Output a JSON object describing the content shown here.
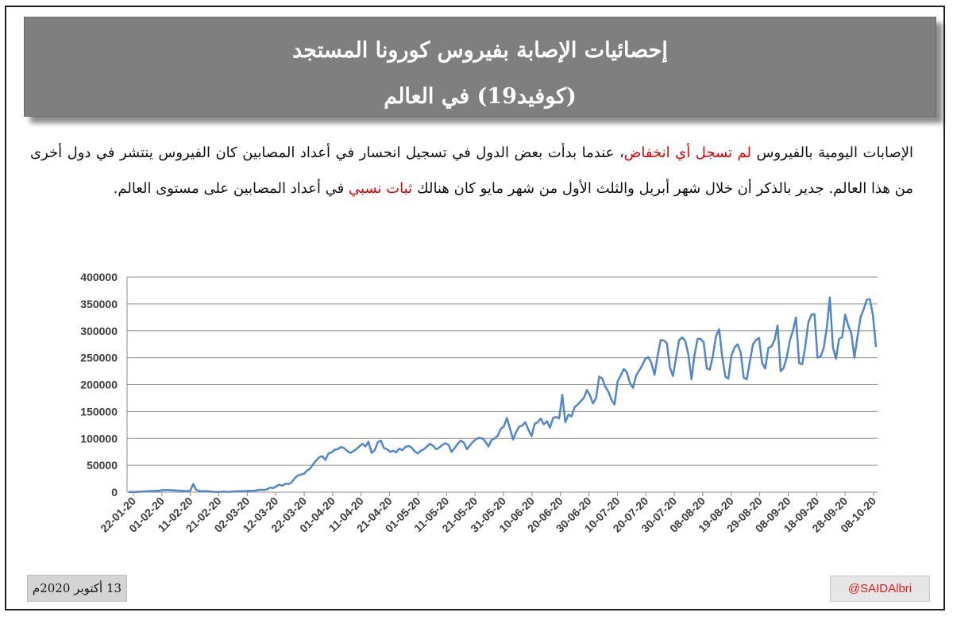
{
  "header": {
    "title_line1": "إحصائيات الإصابة بفيروس كورونا المستجد",
    "title_line2": "(كوفيد19) في العالم"
  },
  "paragraph": {
    "part1": "الإصابات اليومية بالفيروس ",
    "highlight1": "لم تسجل أي انخفاض",
    "part2": "، عندما بدأت بعض الدول في تسجيل انحسار في أعداد المصابين كان الفيروس ينتشر في دول أخرى من هذا العالم. جدير بالذكر أن خلال شهر أبريل والثلث الأول من شهر مايو كان هنالك ",
    "highlight2": "ثبات نسبي",
    "part3": " في أعداد المصابين على مستوى العالم."
  },
  "footer": {
    "date": "13 أكتوبر 2020م",
    "handle": "@SAIDAlbri"
  },
  "colors": {
    "line": "#4f86cc",
    "highlight": "#e00000",
    "banner": "#7f7f7f"
  },
  "chart_data": {
    "type": "line",
    "title": "",
    "xlabel": "",
    "ylabel": "",
    "ylim": [
      0,
      400000
    ],
    "yticks": [
      "0",
      "50000",
      "100000",
      "150000",
      "200000",
      "250000",
      "300000",
      "350000",
      "400000"
    ],
    "x_tick_labels": [
      "22-01-20",
      "01-02-20",
      "11-02-20",
      "21-02-20",
      "02-03-20",
      "12-03-20",
      "22-03-20",
      "01-04-20",
      "11-04-20",
      "21-04-20",
      "01-05-20",
      "11-05-20",
      "21-05-20",
      "31-05-20",
      "10-06-20",
      "20-06-20",
      "30-06-20",
      "10-07-20",
      "20-07-20",
      "30-07-20",
      "08-08-20",
      "19-08-20",
      "29-08-20",
      "08-09-20",
      "18-09-20",
      "28-09-20",
      "08-10-20"
    ],
    "grid": "horizontal",
    "series": [
      {
        "values": [
          600,
          300,
          500,
          800,
          1000,
          1500,
          1700,
          2000,
          2100,
          2600,
          2800,
          3800,
          4000,
          3900,
          3700,
          3200,
          3000,
          2600,
          2100,
          2000,
          2500,
          15000,
          4000,
          2000,
          1800,
          2100,
          1700,
          900,
          600,
          500,
          600,
          1300,
          400,
          800,
          1000,
          1600,
          1900,
          1800,
          2000,
          2500,
          2200,
          2800,
          3700,
          4600,
          4000,
          5300,
          8600,
          7500,
          11000,
          14000,
          12000,
          16000,
          15000,
          18000,
          26000,
          31000,
          33000,
          34000,
          40000,
          44000,
          52000,
          59000,
          65000,
          67000,
          60000,
          72000,
          74000,
          79000,
          80000,
          84000,
          82000,
          77000,
          73000,
          76000,
          80000,
          85000,
          90000,
          85000,
          94000,
          73000,
          78000,
          93000,
          96000,
          82000,
          80000,
          75000,
          77000,
          74000,
          81000,
          78000,
          84000,
          86000,
          83000,
          76000,
          72000,
          77000,
          80000,
          85000,
          90000,
          86000,
          80000,
          83000,
          88000,
          91000,
          88000,
          75000,
          82000,
          90000,
          96000,
          92000,
          80000,
          87000,
          94000,
          99000,
          101000,
          100000,
          94000,
          85000,
          97000,
          100000,
          105000,
          118000,
          122000,
          138000,
          118000,
          98000,
          112000,
          122000,
          124000,
          130000,
          116000,
          104000,
          127000,
          130000,
          137000,
          126000,
          132000,
          120000,
          138000,
          140000,
          137000,
          181000,
          130000,
          144000,
          141000,
          158000,
          163000,
          169000,
          175000,
          190000,
          180000,
          165000,
          175000,
          215000,
          211000,
          196000,
          187000,
          172000,
          163000,
          206000,
          217000,
          229000,
          223000,
          203000,
          194000,
          217000,
          226000,
          236000,
          248000,
          251000,
          240000,
          218000,
          254000,
          283000,
          282000,
          277000,
          232000,
          216000,
          250000,
          283000,
          288000,
          281000,
          256000,
          210000,
          255000,
          285000,
          285000,
          278000,
          230000,
          228000,
          255000,
          290000,
          303000,
          252000,
          215000,
          211000,
          254000,
          269000,
          275000,
          260000,
          213000,
          210000,
          243000,
          275000,
          283000,
          287000,
          240000,
          230000,
          268000,
          271000,
          282000,
          310000,
          225000,
          231000,
          251000,
          282000,
          300000,
          325000,
          240000,
          238000,
          270000,
          315000,
          330000,
          331000,
          250000,
          252000,
          268000,
          305000,
          362000,
          270000,
          248000,
          285000,
          288000,
          330000,
          310000,
          295000,
          250000,
          290000,
          325000,
          340000,
          358000,
          359000,
          330000,
          270000
        ]
      }
    ]
  }
}
